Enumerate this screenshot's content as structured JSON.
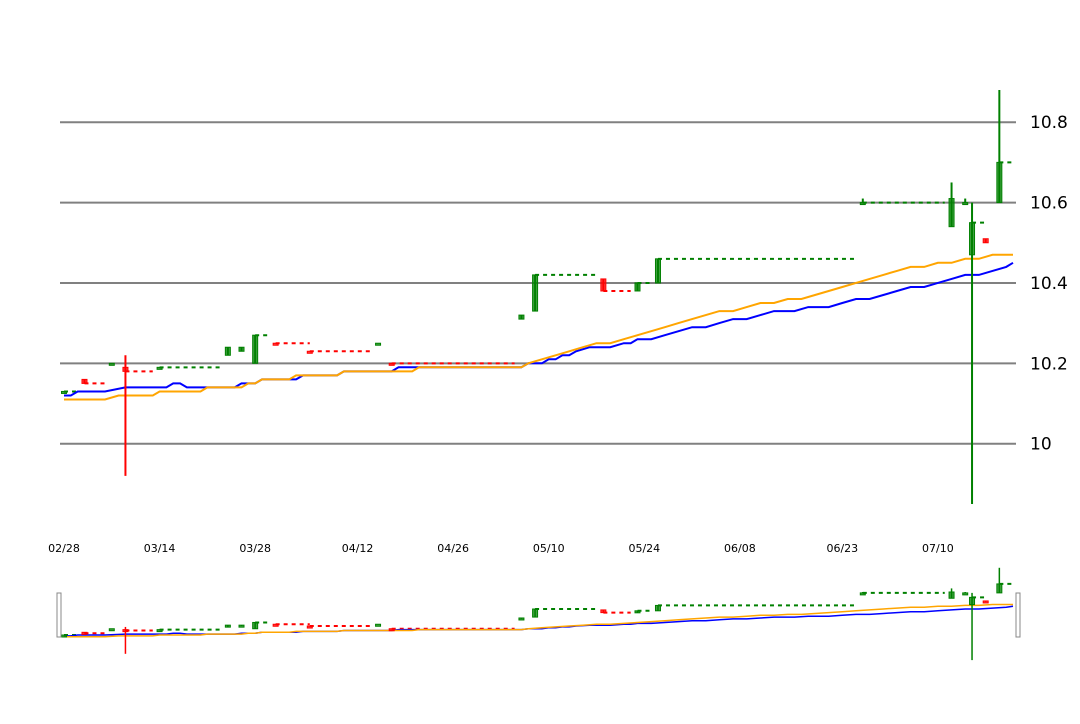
{
  "colors": {
    "up": "#008000",
    "down": "#ff0000",
    "ma_fast": "#0000ff",
    "ma_slow": "#ffa500",
    "grid": "#808080",
    "navigator_handle": "#888888"
  },
  "chart_data": {
    "type": "candlestick",
    "grid": true,
    "y_axis_position": "right",
    "ylim": [
      9.84,
      10.9
    ],
    "y_ticks": [
      10,
      10.2,
      10.4,
      10.6,
      10.8
    ],
    "y_tick_labels": [
      "10",
      "10.2",
      "10.4",
      "10.6",
      "10.8"
    ],
    "x_ticks": [
      {
        "label": "02/28",
        "day": 0
      },
      {
        "label": "03/14",
        "day": 14
      },
      {
        "label": "03/28",
        "day": 28
      },
      {
        "label": "04/12",
        "day": 43
      },
      {
        "label": "04/26",
        "day": 57
      },
      {
        "label": "05/10",
        "day": 71
      },
      {
        "label": "05/24",
        "day": 85
      },
      {
        "label": "06/08",
        "day": 99
      },
      {
        "label": "06/23",
        "day": 114
      },
      {
        "label": "07/10",
        "day": 128
      }
    ],
    "x_range_days": [
      0,
      139
    ],
    "candles": [
      {
        "day": 0,
        "open": 10.13,
        "high": 10.13,
        "low": 10.13,
        "close": 10.13,
        "dir": "up"
      },
      {
        "day": 3,
        "open": 10.16,
        "high": 10.16,
        "low": 10.15,
        "close": 10.15,
        "dir": "down"
      },
      {
        "day": 7,
        "open": 10.2,
        "high": 10.2,
        "low": 10.2,
        "close": 10.2,
        "dir": "up"
      },
      {
        "day": 9,
        "open": 10.19,
        "high": 10.22,
        "low": 9.92,
        "close": 10.18,
        "dir": "down"
      },
      {
        "day": 14,
        "open": 10.19,
        "high": 10.19,
        "low": 10.19,
        "close": 10.19,
        "dir": "up"
      },
      {
        "day": 24,
        "open": 10.22,
        "high": 10.24,
        "low": 10.22,
        "close": 10.24,
        "dir": "up"
      },
      {
        "day": 26,
        "open": 10.23,
        "high": 10.24,
        "low": 10.23,
        "close": 10.24,
        "dir": "up"
      },
      {
        "day": 28,
        "open": 10.2,
        "high": 10.27,
        "low": 10.2,
        "close": 10.27,
        "dir": "up"
      },
      {
        "day": 31,
        "open": 10.25,
        "high": 10.25,
        "low": 10.25,
        "close": 10.25,
        "dir": "down"
      },
      {
        "day": 36,
        "open": 10.23,
        "high": 10.23,
        "low": 10.23,
        "close": 10.23,
        "dir": "down"
      },
      {
        "day": 46,
        "open": 10.25,
        "high": 10.25,
        "low": 10.25,
        "close": 10.25,
        "dir": "up"
      },
      {
        "day": 48,
        "open": 10.2,
        "high": 10.2,
        "low": 10.2,
        "close": 10.2,
        "dir": "down"
      },
      {
        "day": 67,
        "open": 10.31,
        "high": 10.32,
        "low": 10.31,
        "close": 10.32,
        "dir": "up"
      },
      {
        "day": 69,
        "open": 10.33,
        "high": 10.42,
        "low": 10.33,
        "close": 10.42,
        "dir": "up"
      },
      {
        "day": 79,
        "open": 10.41,
        "high": 10.41,
        "low": 10.38,
        "close": 10.38,
        "dir": "down"
      },
      {
        "day": 84,
        "open": 10.38,
        "high": 10.4,
        "low": 10.38,
        "close": 10.4,
        "dir": "up"
      },
      {
        "day": 87,
        "open": 10.4,
        "high": 10.46,
        "low": 10.4,
        "close": 10.46,
        "dir": "up"
      },
      {
        "day": 117,
        "open": 10.6,
        "high": 10.61,
        "low": 10.6,
        "close": 10.6,
        "dir": "up"
      },
      {
        "day": 130,
        "open": 10.54,
        "high": 10.65,
        "low": 10.54,
        "close": 10.61,
        "dir": "up"
      },
      {
        "day": 132,
        "open": 10.6,
        "high": 10.61,
        "low": 10.6,
        "close": 10.6,
        "dir": "up"
      },
      {
        "day": 133,
        "open": 10.47,
        "high": 10.6,
        "low": 9.85,
        "close": 10.55,
        "dir": "up"
      },
      {
        "day": 135,
        "open": 10.51,
        "high": 10.51,
        "low": 10.5,
        "close": 10.5,
        "dir": "down"
      },
      {
        "day": 137,
        "open": 10.6,
        "high": 10.88,
        "low": 10.6,
        "close": 10.7,
        "dir": "up"
      }
    ],
    "dashed_levels": [
      {
        "from": 0,
        "to": 2,
        "value": 10.13,
        "dir": "up"
      },
      {
        "from": 3,
        "to": 6,
        "value": 10.15,
        "dir": "down"
      },
      {
        "from": 9,
        "to": 13,
        "value": 10.18,
        "dir": "down"
      },
      {
        "from": 14,
        "to": 23,
        "value": 10.19,
        "dir": "up"
      },
      {
        "from": 28,
        "to": 30,
        "value": 10.27,
        "dir": "up"
      },
      {
        "from": 31,
        "to": 36,
        "value": 10.25,
        "dir": "down"
      },
      {
        "from": 36,
        "to": 45,
        "value": 10.23,
        "dir": "down"
      },
      {
        "from": 48,
        "to": 66,
        "value": 10.2,
        "dir": "down"
      },
      {
        "from": 69,
        "to": 78,
        "value": 10.42,
        "dir": "up"
      },
      {
        "from": 79,
        "to": 83,
        "value": 10.38,
        "dir": "down"
      },
      {
        "from": 84,
        "to": 86,
        "value": 10.4,
        "dir": "up"
      },
      {
        "from": 87,
        "to": 116,
        "value": 10.46,
        "dir": "up"
      },
      {
        "from": 117,
        "to": 129,
        "value": 10.6,
        "dir": "up"
      },
      {
        "from": 133,
        "to": 135,
        "value": 10.55,
        "dir": "up"
      },
      {
        "from": 137,
        "to": 139,
        "value": 10.7,
        "dir": "up"
      }
    ],
    "series": [
      {
        "line": "ma_fast",
        "points": [
          [
            0,
            10.12
          ],
          [
            1,
            10.12
          ],
          [
            2,
            10.13
          ],
          [
            6,
            10.13
          ],
          [
            9,
            10.14
          ],
          [
            15,
            10.14
          ],
          [
            16,
            10.15
          ],
          [
            17,
            10.15
          ],
          [
            18,
            10.14
          ],
          [
            25,
            10.14
          ],
          [
            26,
            10.15
          ],
          [
            28,
            10.15
          ],
          [
            29,
            10.16
          ],
          [
            34,
            10.16
          ],
          [
            35,
            10.17
          ],
          [
            40,
            10.17
          ],
          [
            41,
            10.18
          ],
          [
            48,
            10.18
          ],
          [
            49,
            10.19
          ],
          [
            67,
            10.19
          ],
          [
            68,
            10.2
          ],
          [
            70,
            10.2
          ],
          [
            71,
            10.21
          ],
          [
            72,
            10.21
          ],
          [
            73,
            10.22
          ],
          [
            74,
            10.22
          ],
          [
            75,
            10.23
          ],
          [
            77,
            10.24
          ],
          [
            80,
            10.24
          ],
          [
            82,
            10.25
          ],
          [
            83,
            10.25
          ],
          [
            84,
            10.26
          ],
          [
            86,
            10.26
          ],
          [
            88,
            10.27
          ],
          [
            90,
            10.28
          ],
          [
            92,
            10.29
          ],
          [
            94,
            10.29
          ],
          [
            96,
            10.3
          ],
          [
            98,
            10.31
          ],
          [
            100,
            10.31
          ],
          [
            102,
            10.32
          ],
          [
            104,
            10.33
          ],
          [
            107,
            10.33
          ],
          [
            109,
            10.34
          ],
          [
            112,
            10.34
          ],
          [
            114,
            10.35
          ],
          [
            116,
            10.36
          ],
          [
            118,
            10.36
          ],
          [
            120,
            10.37
          ],
          [
            122,
            10.38
          ],
          [
            124,
            10.39
          ],
          [
            126,
            10.39
          ],
          [
            128,
            10.4
          ],
          [
            130,
            10.41
          ],
          [
            132,
            10.42
          ],
          [
            134,
            10.42
          ],
          [
            136,
            10.43
          ],
          [
            138,
            10.44
          ],
          [
            139,
            10.45
          ]
        ]
      },
      {
        "line": "ma_slow",
        "points": [
          [
            0,
            10.11
          ],
          [
            6,
            10.11
          ],
          [
            8,
            10.12
          ],
          [
            13,
            10.12
          ],
          [
            14,
            10.13
          ],
          [
            20,
            10.13
          ],
          [
            21,
            10.14
          ],
          [
            26,
            10.14
          ],
          [
            27,
            10.15
          ],
          [
            28,
            10.15
          ],
          [
            29,
            10.16
          ],
          [
            33,
            10.16
          ],
          [
            34,
            10.17
          ],
          [
            40,
            10.17
          ],
          [
            41,
            10.18
          ],
          [
            51,
            10.18
          ],
          [
            52,
            10.19
          ],
          [
            67,
            10.19
          ],
          [
            68,
            10.2
          ],
          [
            70,
            10.21
          ],
          [
            72,
            10.22
          ],
          [
            74,
            10.23
          ],
          [
            76,
            10.24
          ],
          [
            78,
            10.25
          ],
          [
            80,
            10.25
          ],
          [
            82,
            10.26
          ],
          [
            84,
            10.27
          ],
          [
            86,
            10.28
          ],
          [
            88,
            10.29
          ],
          [
            90,
            10.3
          ],
          [
            92,
            10.31
          ],
          [
            94,
            10.32
          ],
          [
            96,
            10.33
          ],
          [
            98,
            10.33
          ],
          [
            100,
            10.34
          ],
          [
            102,
            10.35
          ],
          [
            104,
            10.35
          ],
          [
            106,
            10.36
          ],
          [
            108,
            10.36
          ],
          [
            110,
            10.37
          ],
          [
            112,
            10.38
          ],
          [
            114,
            10.39
          ],
          [
            116,
            10.4
          ],
          [
            118,
            10.41
          ],
          [
            120,
            10.42
          ],
          [
            122,
            10.43
          ],
          [
            124,
            10.44
          ],
          [
            126,
            10.44
          ],
          [
            128,
            10.45
          ],
          [
            130,
            10.45
          ],
          [
            132,
            10.46
          ],
          [
            134,
            10.46
          ],
          [
            136,
            10.47
          ],
          [
            139,
            10.47
          ]
        ]
      }
    ]
  }
}
